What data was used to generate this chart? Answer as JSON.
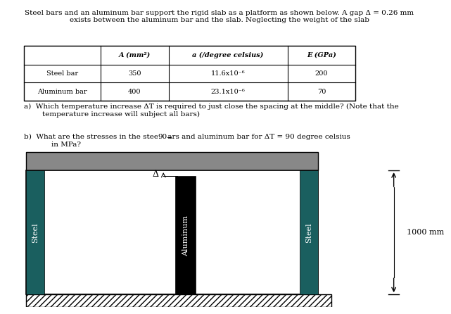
{
  "title_text": "Steel bars and an aluminum bar support the rigid slab as a platform as shown below. A gap Δ = 0.26 mm\nexists between the aluminum bar and the slab. Neglecting the weight of the slab",
  "table": {
    "col_headers": [
      "",
      "A (mm²)",
      "a (/degree celsius)",
      "E (GPa)"
    ],
    "rows": [
      [
        "Steel bar",
        "350",
        "11.6x10⁻⁶",
        "200"
      ],
      [
        "Aluminum bar",
        "400",
        "23.1x10⁻⁶",
        "70"
      ]
    ]
  },
  "question_a": "a)  Which temperature increase ΔT is required to just close the spacing at the middle? (Note that the\n        temperature increase will subject all bars)",
  "question_b": "b)  What are the stresses in the steel bars and aluminum bar for ΔT = 90 degree celsius\n            in MPa?",
  "diagram": {
    "slab_color": "#888888",
    "steel_color": "#1a5f5f",
    "aluminum_color": "#000000",
    "ground_color": "#888888",
    "bg_color": "#ffffff",
    "border_color": "#000000"
  },
  "dimension_text": "1000 mm"
}
